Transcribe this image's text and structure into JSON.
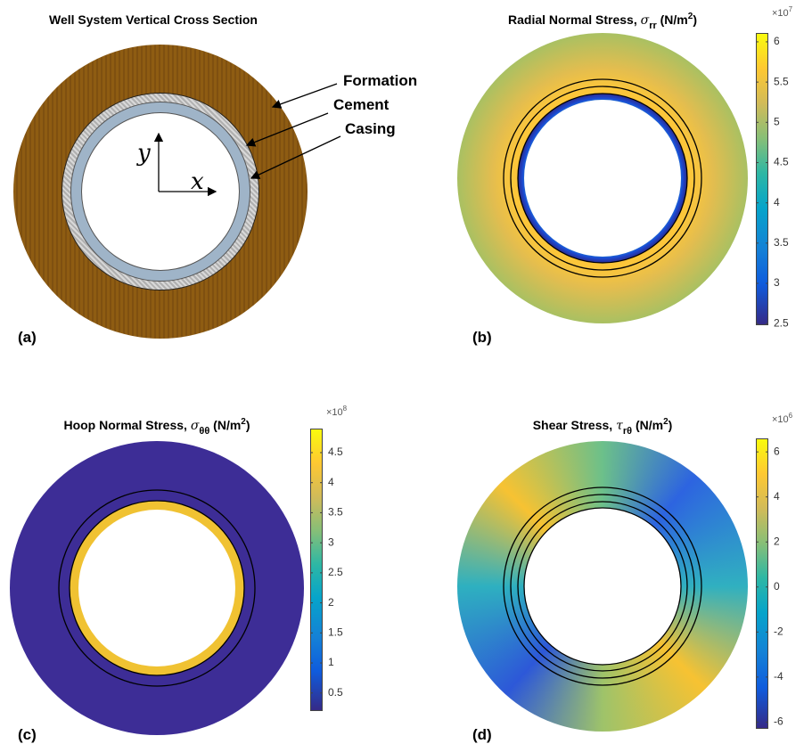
{
  "panels": [
    {
      "label": "(a)",
      "title": "Well System Vertical Cross Section",
      "annotations": [
        "Formation",
        "Cement",
        "Casing"
      ],
      "axes": [
        "x",
        "y"
      ]
    },
    {
      "label": "(b)",
      "title": {
        "text": "Radial Normal Stress, ",
        "symbol": "σ",
        "subscript": "rr",
        "unit": " (N/m",
        "power": "2",
        "close": ")"
      },
      "colorbar": {
        "lim": [
          2.48,
          6.11
        ],
        "ticks": [
          2.5,
          3,
          3.5,
          4,
          4.5,
          5,
          5.5,
          6
        ],
        "exponent": {
          "base": "×10",
          "power": "7"
        }
      }
    },
    {
      "label": "(c)",
      "title": {
        "text": "Hoop Normal Stress, ",
        "symbol": "σ",
        "subscript": "θθ",
        "unit": " (N/m",
        "power": "2",
        "close": ")"
      },
      "colorbar": {
        "lim": [
          0.2,
          4.9
        ],
        "ticks": [
          0.5,
          1,
          1.5,
          2,
          2.5,
          3,
          3.5,
          4,
          4.5
        ],
        "exponent": {
          "base": "×10",
          "power": "8"
        }
      }
    },
    {
      "label": "(d)",
      "title": {
        "text": "Shear Stress, ",
        "symbol": "τ",
        "subscript": "rθ",
        "unit": " (N/m",
        "power": "2",
        "close": ")"
      },
      "colorbar": {
        "lim": [
          -6.3,
          6.6
        ],
        "ticks": [
          -6,
          -4,
          -2,
          0,
          2,
          4,
          6
        ],
        "exponent": {
          "base": "×10",
          "power": "6"
        }
      }
    }
  ]
}
